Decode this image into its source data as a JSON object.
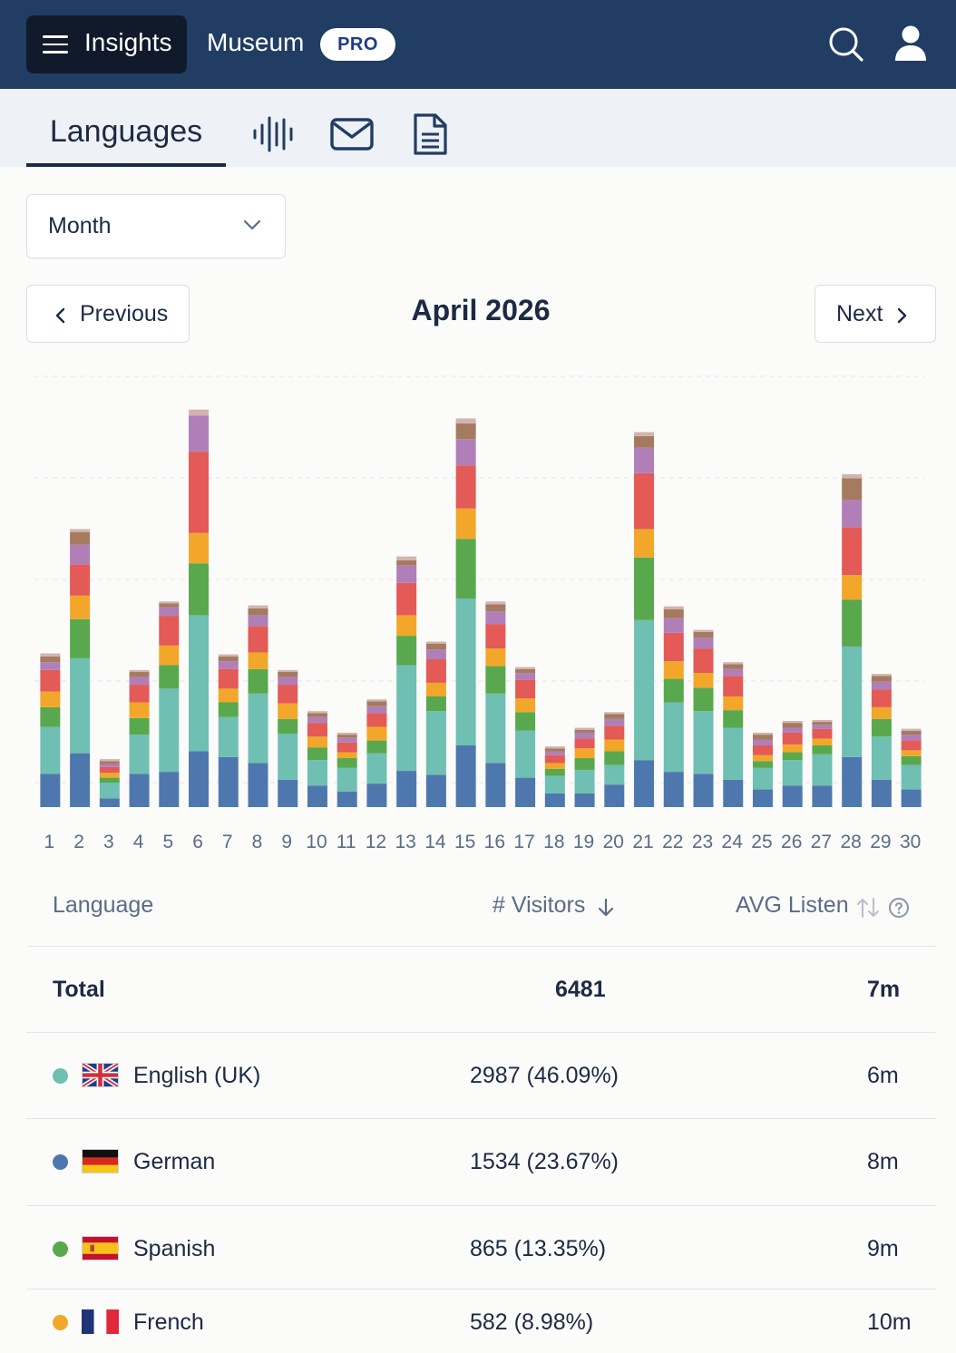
{
  "topbar": {
    "menu_label": "Insights",
    "org_name": "Museum",
    "badge": "PRO",
    "icons": [
      "menu-icon",
      "search-icon",
      "user-icon"
    ]
  },
  "tabs": {
    "active_label": "Languages",
    "icons": [
      "audio-waveform-icon",
      "mail-icon",
      "document-icon"
    ]
  },
  "period_select": {
    "value": "Month"
  },
  "navigation": {
    "previous_label": "Previous",
    "next_label": "Next",
    "title": "April 2026"
  },
  "colors": {
    "english": "#6fbfb2",
    "german": "#4e78ad",
    "spanish": "#59a84e",
    "french": "#f2a72a",
    "series5": "#e35a56",
    "series6": "#b07fb8",
    "series7": "#a57a5e",
    "series8": "#d3b3ad"
  },
  "chart_data": {
    "type": "bar",
    "stacked": true,
    "categories": [
      "1",
      "2",
      "3",
      "4",
      "5",
      "6",
      "7",
      "8",
      "9",
      "10",
      "11",
      "12",
      "13",
      "14",
      "15",
      "16",
      "17",
      "18",
      "19",
      "20",
      "21",
      "22",
      "23",
      "24",
      "25",
      "26",
      "27",
      "28",
      "29",
      "30"
    ],
    "ylim": [
      0,
      440
    ],
    "grid": true,
    "series": [
      {
        "name": "German",
        "color_key": "german",
        "values": [
          34,
          55,
          9,
          34,
          36,
          57,
          51,
          45,
          28,
          22,
          16,
          24,
          37,
          33,
          63,
          45,
          30,
          14,
          14,
          23,
          48,
          36,
          34,
          28,
          18,
          22,
          22,
          51,
          28,
          18
        ]
      },
      {
        "name": "English (UK)",
        "color_key": "english",
        "values": [
          48,
          97,
          16,
          40,
          85,
          139,
          41,
          71,
          47,
          26,
          24,
          31,
          108,
          65,
          150,
          71,
          48,
          18,
          24,
          20,
          143,
          71,
          64,
          53,
          22,
          26,
          32,
          113,
          44,
          25
        ]
      },
      {
        "name": "Spanish",
        "color_key": "spanish",
        "values": [
          20,
          40,
          5,
          17,
          24,
          53,
          15,
          25,
          15,
          13,
          10,
          13,
          30,
          15,
          61,
          28,
          19,
          7,
          12,
          14,
          64,
          24,
          24,
          18,
          7,
          8,
          9,
          48,
          18,
          9
        ]
      },
      {
        "name": "French",
        "color_key": "french",
        "values": [
          16,
          24,
          5,
          16,
          20,
          31,
          14,
          17,
          16,
          11,
          6,
          14,
          21,
          14,
          31,
          18,
          14,
          6,
          10,
          12,
          29,
          18,
          15,
          14,
          6,
          8,
          7,
          25,
          12,
          6
        ]
      },
      {
        "values": [
          22,
          32,
          6,
          18,
          30,
          83,
          20,
          27,
          19,
          14,
          10,
          14,
          33,
          24,
          44,
          25,
          19,
          8,
          10,
          14,
          57,
          29,
          25,
          21,
          10,
          12,
          10,
          49,
          18,
          10
        ]
      },
      {
        "values": [
          8,
          20,
          3,
          8,
          9,
          37,
          8,
          11,
          8,
          6,
          5,
          7,
          18,
          10,
          27,
          13,
          7,
          4,
          6,
          7,
          26,
          15,
          11,
          7,
          6,
          5,
          4,
          28,
          8,
          6
        ]
      },
      {
        "values": [
          6,
          13,
          3,
          5,
          4,
          0,
          5,
          7,
          5,
          4,
          3,
          5,
          5,
          6,
          16,
          7,
          4,
          3,
          3,
          5,
          12,
          9,
          6,
          5,
          5,
          5,
          3,
          22,
          6,
          4
        ]
      },
      {
        "values": [
          3,
          3,
          2,
          2,
          2,
          6,
          2,
          3,
          2,
          2,
          2,
          2,
          4,
          2,
          5,
          3,
          2,
          2,
          2,
          2,
          4,
          3,
          2,
          2,
          2,
          2,
          2,
          4,
          2,
          2
        ]
      }
    ]
  },
  "table": {
    "headers": {
      "language": "Language",
      "visitors": "# Visitors",
      "avg_listen": "AVG Listen"
    },
    "total": {
      "label": "Total",
      "visitors": "6481",
      "avg": "7m"
    },
    "rows": [
      {
        "name": "English (UK)",
        "flag": "uk-flag-icon",
        "visitors": "2987 (46.09%)",
        "avg": "6m",
        "color": "#6fbfb2"
      },
      {
        "name": "German",
        "flag": "germany-flag-icon",
        "visitors": "1534 (23.67%)",
        "avg": "8m",
        "color": "#4e78ad"
      },
      {
        "name": "Spanish",
        "flag": "spain-flag-icon",
        "visitors": "865 (13.35%)",
        "avg": "9m",
        "color": "#59a84e"
      },
      {
        "name": "French",
        "flag": "france-flag-icon",
        "visitors": "582 (8.98%)",
        "avg": "10m",
        "color": "#f2a72a"
      }
    ]
  }
}
